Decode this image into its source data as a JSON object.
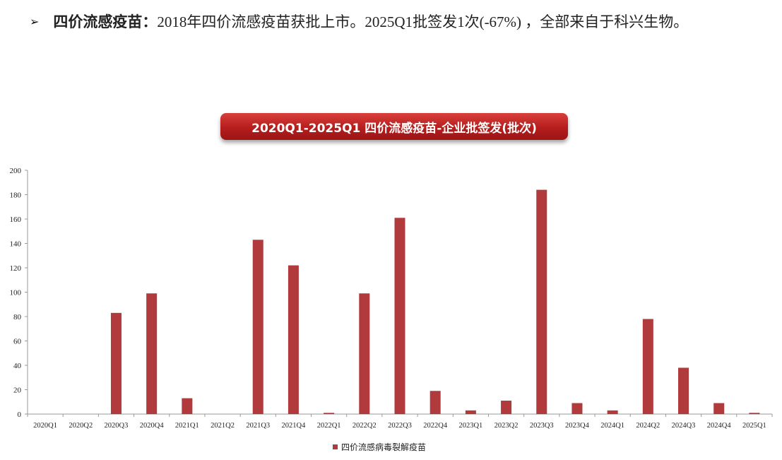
{
  "bullet": {
    "arrow": "➢",
    "label": "四价流感疫苗：",
    "text": "2018年四价流感疫苗获批上市。2025Q1批签发1次(-67%) ，全部来自于科兴生物。"
  },
  "chart_data": {
    "type": "bar",
    "title": "2020Q1-2025Q1 四价流感疫苗-企业批签发(批次)",
    "categories": [
      "2020Q1",
      "2020Q2",
      "2020Q3",
      "2020Q4",
      "2021Q1",
      "2021Q2",
      "2021Q3",
      "2021Q4",
      "2022Q1",
      "2022Q2",
      "2022Q3",
      "2022Q4",
      "2023Q1",
      "2023Q2",
      "2023Q3",
      "2023Q4",
      "2024Q1",
      "2024Q2",
      "2024Q3",
      "2024Q4",
      "2025Q1"
    ],
    "series": [
      {
        "name": "四价流感病毒裂解疫苗",
        "values": [
          0,
          0,
          83,
          99,
          13,
          0,
          143,
          122,
          1,
          99,
          161,
          19,
          3,
          11,
          184,
          9,
          3,
          78,
          38,
          9,
          1
        ],
        "color": "#b03a3c"
      }
    ],
    "ylim": [
      0,
      200
    ],
    "yticks": [
      0,
      20,
      40,
      60,
      80,
      100,
      120,
      140,
      160,
      180,
      200
    ],
    "grid": false,
    "legend": "bottom-center"
  }
}
